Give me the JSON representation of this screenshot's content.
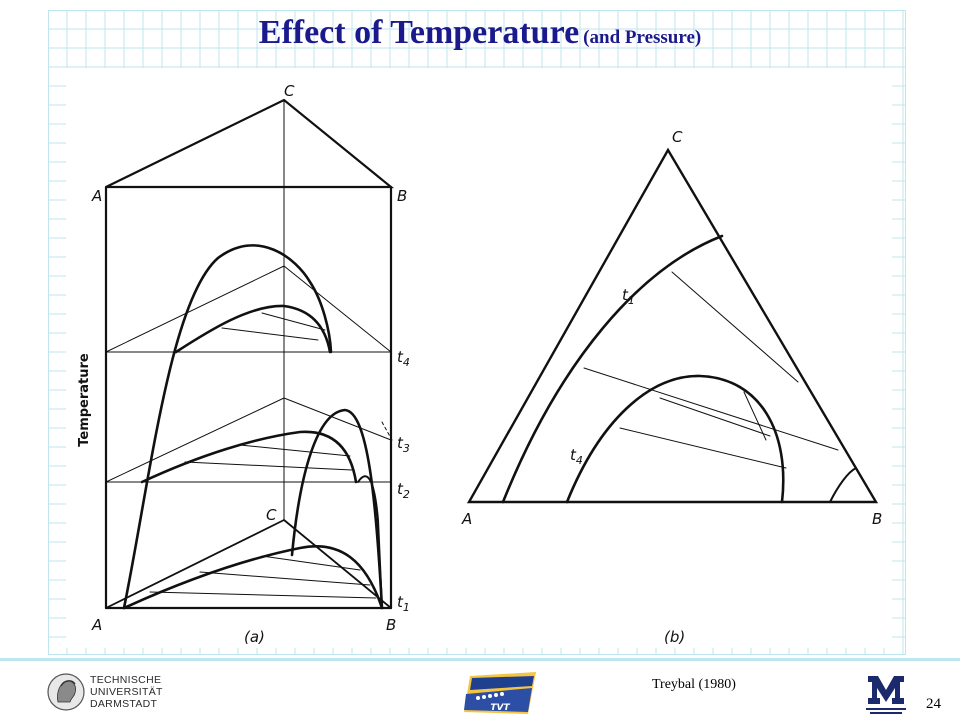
{
  "slide": {
    "title_main": "Effect of Temperature",
    "title_sub": "(and Pressure)",
    "citation": "Treybal (1980)",
    "page_number": "24"
  },
  "diagram_a": {
    "vertex_a": "A",
    "vertex_b": "B",
    "vertex_c": "C",
    "axis_label": "Temperature",
    "level_t4": "t",
    "level_t4_sub": "4",
    "level_t3": "t",
    "level_t3_sub": "3",
    "level_t2": "t",
    "level_t2_sub": "2",
    "level_t1": "t",
    "level_t1_sub": "1",
    "caption": "(a)"
  },
  "diagram_b": {
    "vertex_a": "A",
    "vertex_b": "B",
    "vertex_c": "C",
    "curve_t1": "t",
    "curve_t1_sub": "1",
    "curve_t4": "t",
    "curve_t4_sub": "4",
    "caption": "(b)"
  },
  "footer": {
    "tud_lines": [
      "TECHNISCHE",
      "UNIVERSITÄT",
      "DARMSTADT"
    ],
    "tvt_text": "TVT"
  },
  "colors": {
    "title": "#1a1a8c",
    "grid": "#bfe6ee",
    "ink": "#111111"
  }
}
